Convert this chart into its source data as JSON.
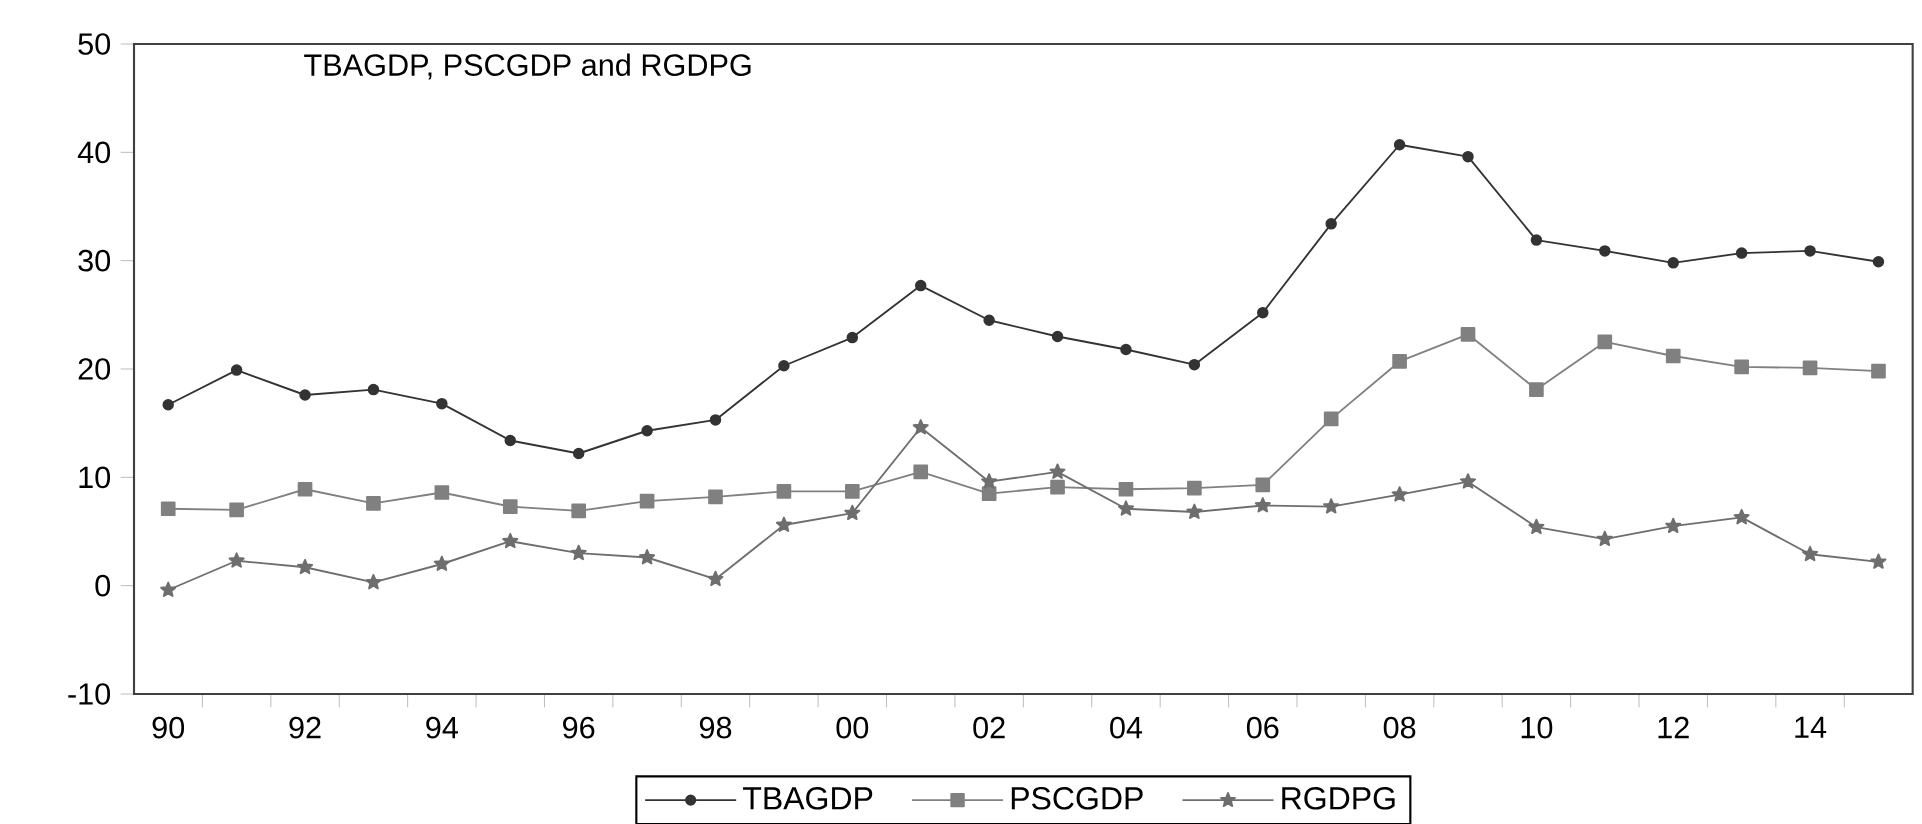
{
  "chart_data": {
    "type": "line",
    "title": "TBAGDP, PSCGDP and RGDPG",
    "categories": [
      "90",
      null,
      "92",
      null,
      "94",
      null,
      "96",
      null,
      "98",
      null,
      "00",
      null,
      "02",
      null,
      "04",
      null,
      "06",
      null,
      "08",
      null,
      "10",
      null,
      "12",
      null,
      "14",
      null
    ],
    "series": [
      {
        "name": "TBAGDP",
        "color": "#333333",
        "marker": "circle",
        "values": [
          16.7,
          19.9,
          17.6,
          18.1,
          16.8,
          13.4,
          12.2,
          14.3,
          15.3,
          20.3,
          22.9,
          27.7,
          24.5,
          23.0,
          21.8,
          20.4,
          25.2,
          33.4,
          40.7,
          39.6,
          31.9,
          30.9,
          29.8,
          30.7,
          30.9,
          29.9
        ]
      },
      {
        "name": "PSCGDP",
        "color": "#808080",
        "marker": "square",
        "values": [
          7.1,
          7.0,
          8.9,
          7.6,
          8.6,
          7.3,
          6.9,
          7.8,
          8.2,
          8.7,
          8.7,
          10.5,
          8.5,
          9.1,
          8.9,
          9.0,
          9.3,
          15.4,
          20.7,
          23.2,
          18.1,
          22.5,
          21.2,
          20.2,
          20.1,
          19.8
        ]
      },
      {
        "name": "RGDPG",
        "color": "#6e6e6e",
        "marker": "star",
        "values": [
          -0.4,
          2.3,
          1.7,
          0.3,
          2.0,
          4.1,
          3.0,
          2.6,
          0.6,
          5.6,
          6.7,
          14.6,
          9.6,
          10.5,
          7.1,
          6.8,
          7.4,
          7.3,
          8.4,
          9.6,
          5.4,
          4.3,
          5.5,
          6.3,
          2.9,
          2.2
        ]
      }
    ],
    "ylim": [
      -10,
      50
    ],
    "yticks": [
      -10,
      0,
      10,
      20,
      30,
      40,
      50
    ],
    "grid": false,
    "legend": "bottom",
    "line_style": "solid"
  }
}
